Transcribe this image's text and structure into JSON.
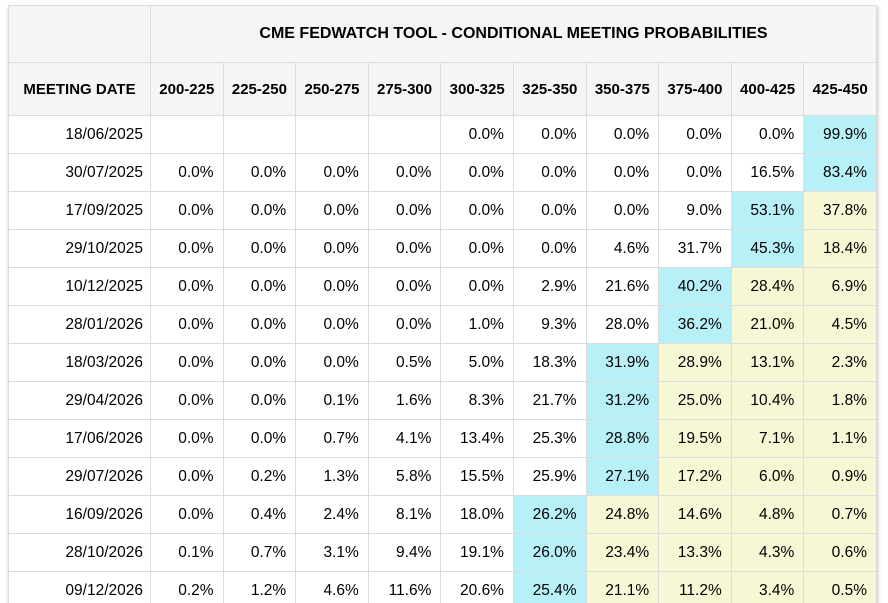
{
  "colors": {
    "cyan": "#b8f0f8",
    "yellow": "#f6f7d5",
    "header_bg": "#f5f5f5",
    "border": "#dcdcdc",
    "text": "#000000"
  },
  "table": {
    "title": "CME FEDWATCH TOOL - CONDITIONAL MEETING PROBABILITIES",
    "columns": [
      "MEETING DATE",
      "200-225",
      "225-250",
      "250-275",
      "275-300",
      "300-325",
      "325-350",
      "350-375",
      "375-400",
      "400-425",
      "425-450"
    ],
    "rows": [
      {
        "date": "18/06/2025",
        "values": [
          "",
          "",
          "",
          "",
          "0.0%",
          "0.0%",
          "0.0%",
          "0.0%",
          "0.0%",
          "99.9%"
        ],
        "highlights": [
          "",
          "",
          "",
          "",
          "",
          "",
          "",
          "",
          "",
          "c"
        ]
      },
      {
        "date": "30/07/2025",
        "values": [
          "0.0%",
          "0.0%",
          "0.0%",
          "0.0%",
          "0.0%",
          "0.0%",
          "0.0%",
          "0.0%",
          "16.5%",
          "83.4%"
        ],
        "highlights": [
          "",
          "",
          "",
          "",
          "",
          "",
          "",
          "",
          "",
          "c"
        ]
      },
      {
        "date": "17/09/2025",
        "values": [
          "0.0%",
          "0.0%",
          "0.0%",
          "0.0%",
          "0.0%",
          "0.0%",
          "0.0%",
          "9.0%",
          "53.1%",
          "37.8%"
        ],
        "highlights": [
          "",
          "",
          "",
          "",
          "",
          "",
          "",
          "",
          "c",
          "y"
        ]
      },
      {
        "date": "29/10/2025",
        "values": [
          "0.0%",
          "0.0%",
          "0.0%",
          "0.0%",
          "0.0%",
          "0.0%",
          "4.6%",
          "31.7%",
          "45.3%",
          "18.4%"
        ],
        "highlights": [
          "",
          "",
          "",
          "",
          "",
          "",
          "",
          "",
          "c",
          "y"
        ]
      },
      {
        "date": "10/12/2025",
        "values": [
          "0.0%",
          "0.0%",
          "0.0%",
          "0.0%",
          "0.0%",
          "2.9%",
          "21.6%",
          "40.2%",
          "28.4%",
          "6.9%"
        ],
        "highlights": [
          "",
          "",
          "",
          "",
          "",
          "",
          "",
          "c",
          "y",
          "y"
        ]
      },
      {
        "date": "28/01/2026",
        "values": [
          "0.0%",
          "0.0%",
          "0.0%",
          "0.0%",
          "1.0%",
          "9.3%",
          "28.0%",
          "36.2%",
          "21.0%",
          "4.5%"
        ],
        "highlights": [
          "",
          "",
          "",
          "",
          "",
          "",
          "",
          "c",
          "y",
          "y"
        ]
      },
      {
        "date": "18/03/2026",
        "values": [
          "0.0%",
          "0.0%",
          "0.0%",
          "0.5%",
          "5.0%",
          "18.3%",
          "31.9%",
          "28.9%",
          "13.1%",
          "2.3%"
        ],
        "highlights": [
          "",
          "",
          "",
          "",
          "",
          "",
          "c",
          "y",
          "y",
          "y"
        ]
      },
      {
        "date": "29/04/2026",
        "values": [
          "0.0%",
          "0.0%",
          "0.1%",
          "1.6%",
          "8.3%",
          "21.7%",
          "31.2%",
          "25.0%",
          "10.4%",
          "1.8%"
        ],
        "highlights": [
          "",
          "",
          "",
          "",
          "",
          "",
          "c",
          "y",
          "y",
          "y"
        ]
      },
      {
        "date": "17/06/2026",
        "values": [
          "0.0%",
          "0.0%",
          "0.7%",
          "4.1%",
          "13.4%",
          "25.3%",
          "28.8%",
          "19.5%",
          "7.1%",
          "1.1%"
        ],
        "highlights": [
          "",
          "",
          "",
          "",
          "",
          "",
          "c",
          "y",
          "y",
          "y"
        ]
      },
      {
        "date": "29/07/2026",
        "values": [
          "0.0%",
          "0.2%",
          "1.3%",
          "5.8%",
          "15.5%",
          "25.9%",
          "27.1%",
          "17.2%",
          "6.0%",
          "0.9%"
        ],
        "highlights": [
          "",
          "",
          "",
          "",
          "",
          "",
          "c",
          "y",
          "y",
          "y"
        ]
      },
      {
        "date": "16/09/2026",
        "values": [
          "0.0%",
          "0.4%",
          "2.4%",
          "8.1%",
          "18.0%",
          "26.2%",
          "24.8%",
          "14.6%",
          "4.8%",
          "0.7%"
        ],
        "highlights": [
          "",
          "",
          "",
          "",
          "",
          "c",
          "y",
          "y",
          "y",
          "y"
        ]
      },
      {
        "date": "28/10/2026",
        "values": [
          "0.1%",
          "0.7%",
          "3.1%",
          "9.4%",
          "19.1%",
          "26.0%",
          "23.4%",
          "13.3%",
          "4.3%",
          "0.6%"
        ],
        "highlights": [
          "",
          "",
          "",
          "",
          "",
          "c",
          "y",
          "y",
          "y",
          "y"
        ]
      },
      {
        "date": "09/12/2026",
        "values": [
          "0.2%",
          "1.2%",
          "4.6%",
          "11.6%",
          "20.6%",
          "25.4%",
          "21.1%",
          "11.2%",
          "3.4%",
          "0.5%"
        ],
        "highlights": [
          "",
          "",
          "",
          "",
          "",
          "c",
          "y",
          "y",
          "y",
          "y"
        ]
      }
    ]
  }
}
